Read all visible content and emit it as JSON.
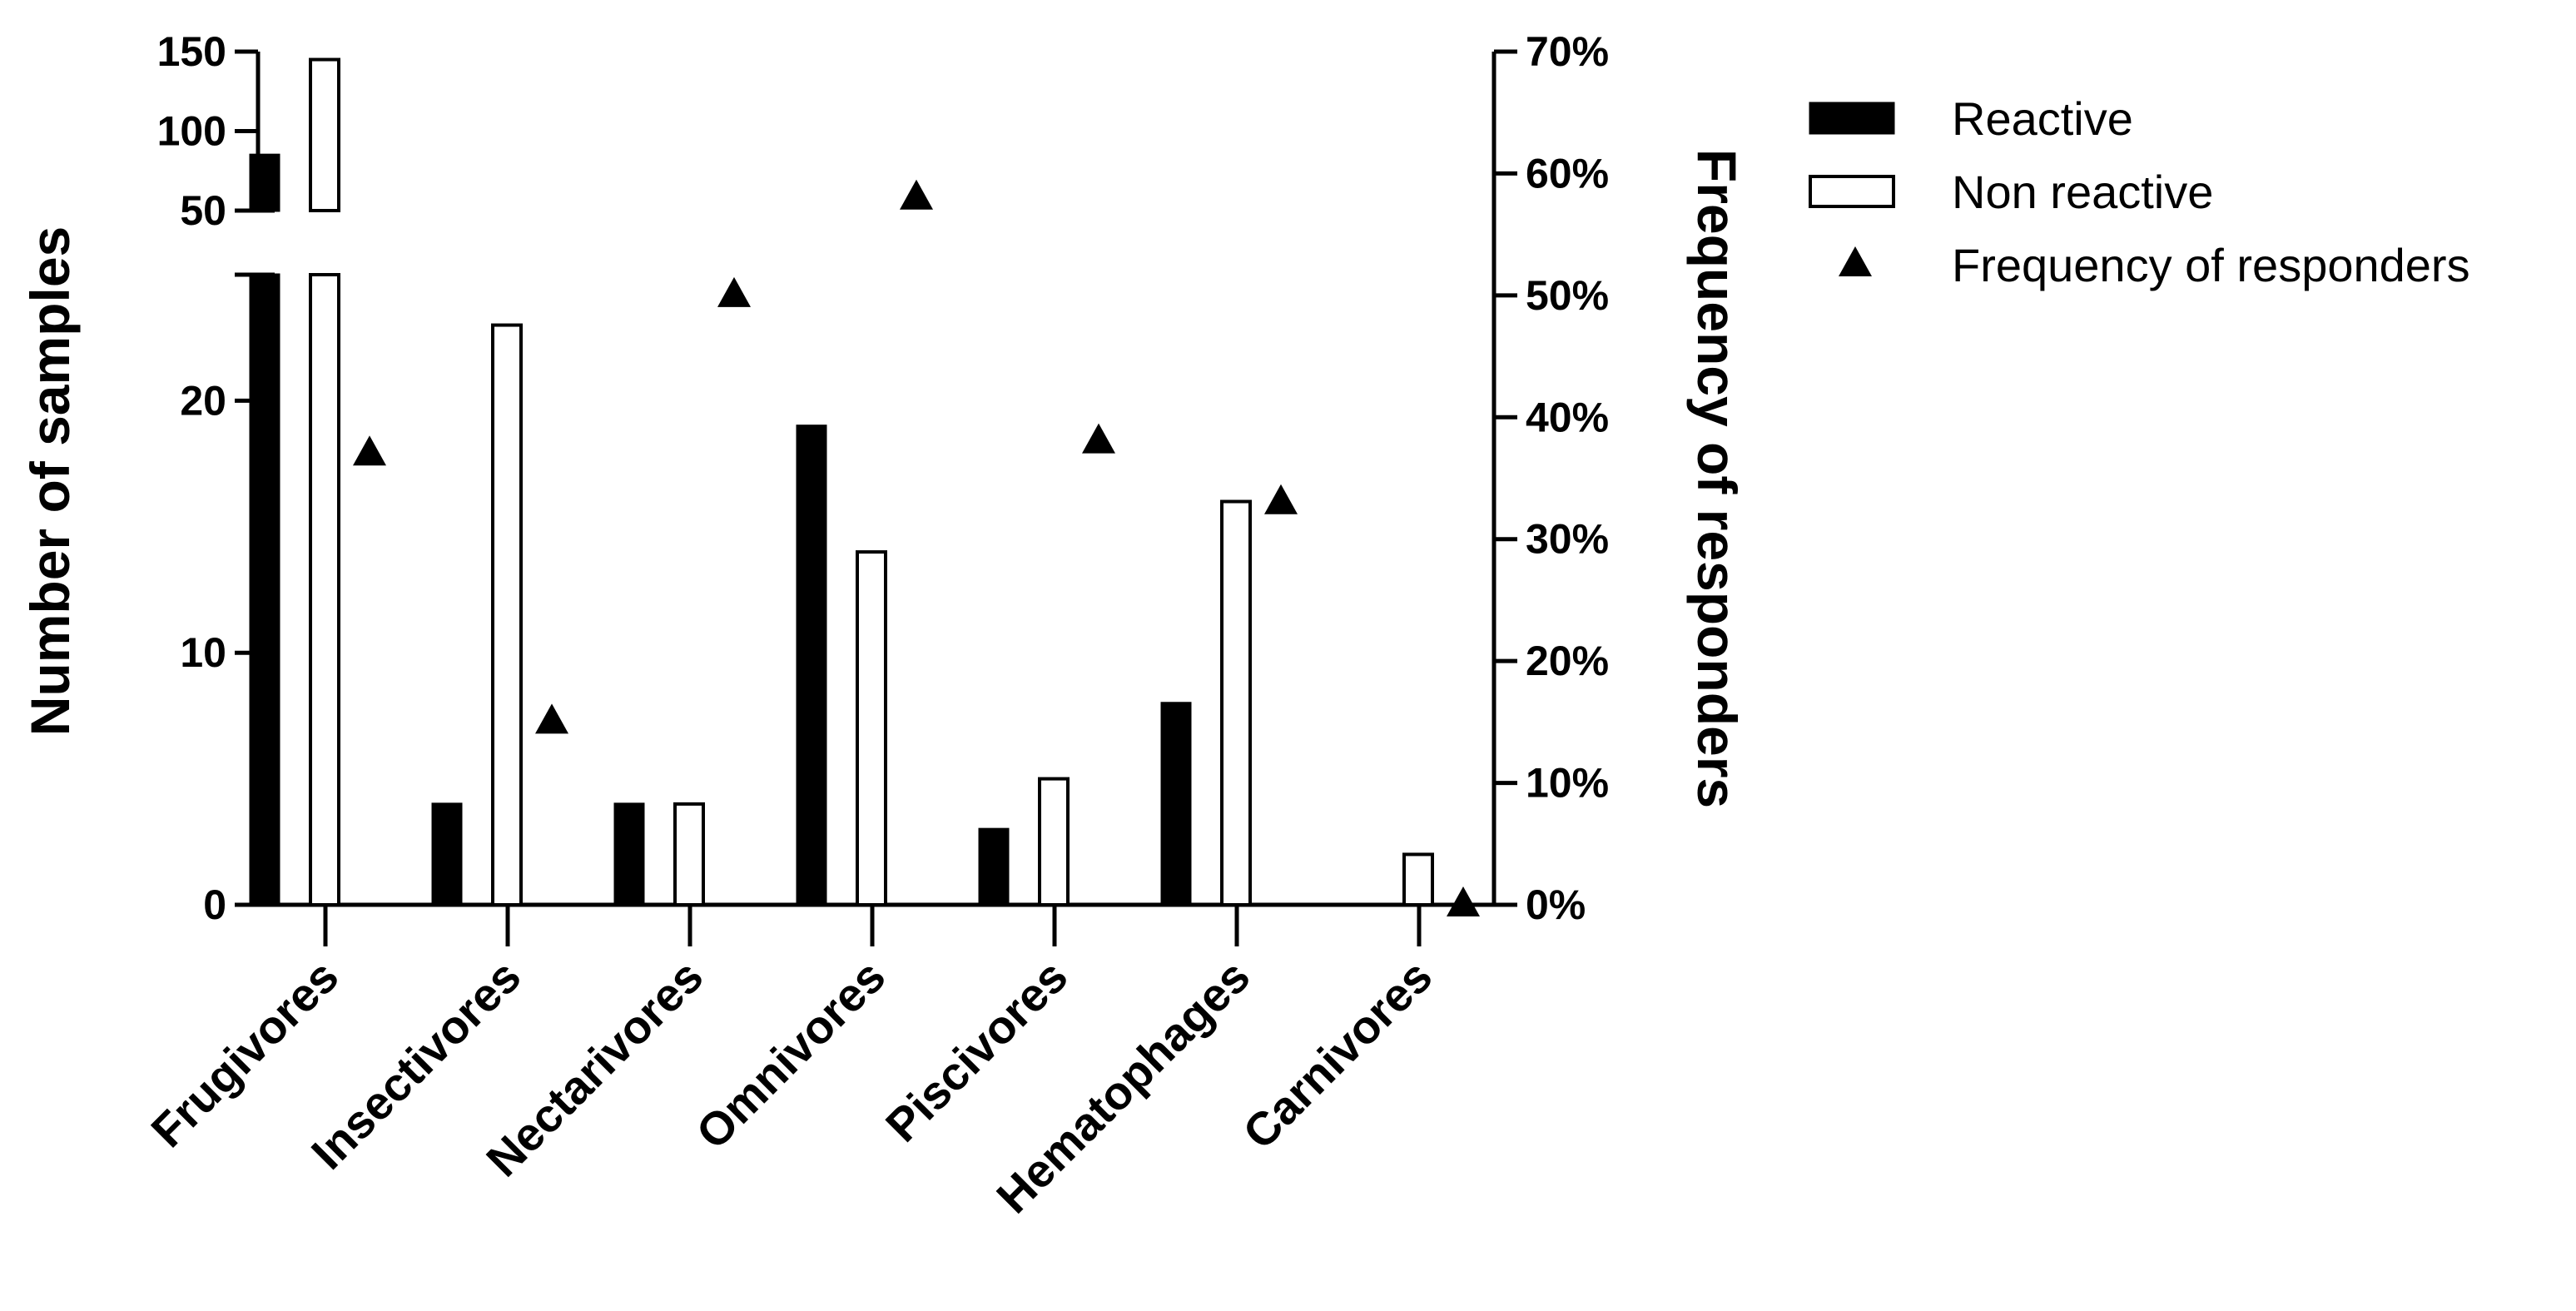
{
  "chart_data": {
    "type": "bar",
    "categories": [
      "Frugivores",
      "Insectivores",
      "Nectarivores",
      "Omnivores",
      "Piscivores",
      "Hematophages",
      "Carnivores"
    ],
    "series": [
      {
        "name": "Reactive",
        "axis": "left",
        "kind": "bar",
        "style": "filled",
        "values": [
          85,
          4,
          4,
          19,
          3,
          8,
          0
        ]
      },
      {
        "name": "Non reactive",
        "axis": "left",
        "kind": "bar",
        "style": "hollow",
        "values": [
          145,
          23,
          4,
          14,
          5,
          16,
          2
        ]
      },
      {
        "name": "Frequency of responders",
        "axis": "right",
        "kind": "scatter",
        "marker": "triangle",
        "values": [
          37,
          15,
          50,
          58,
          38,
          33,
          0
        ]
      }
    ],
    "ylabel": "Number of samples",
    "y2label": "Frequency of responders",
    "y_axis": {
      "broken": true,
      "lower_segment": {
        "range": [
          0,
          25
        ],
        "ticks": [
          0,
          10,
          20
        ]
      },
      "upper_segment": {
        "range": [
          50,
          150
        ],
        "ticks": [
          50,
          100,
          150
        ]
      }
    },
    "y2_axis": {
      "range": [
        0,
        70
      ],
      "ticks": [
        "0%",
        "10%",
        "20%",
        "30%",
        "40%",
        "50%",
        "60%",
        "70%"
      ]
    },
    "legend": {
      "position": "top-right",
      "entries": [
        {
          "label": "Reactive",
          "symbol": "filled-rect"
        },
        {
          "label": "Non reactive",
          "symbol": "hollow-rect"
        },
        {
          "label": "Frequency of responders",
          "symbol": "triangle"
        }
      ]
    },
    "grid": false,
    "colors": {
      "reactive": "#000000",
      "non_reactive": "#ffffff",
      "outline": "#000000",
      "marker": "#000000"
    }
  }
}
